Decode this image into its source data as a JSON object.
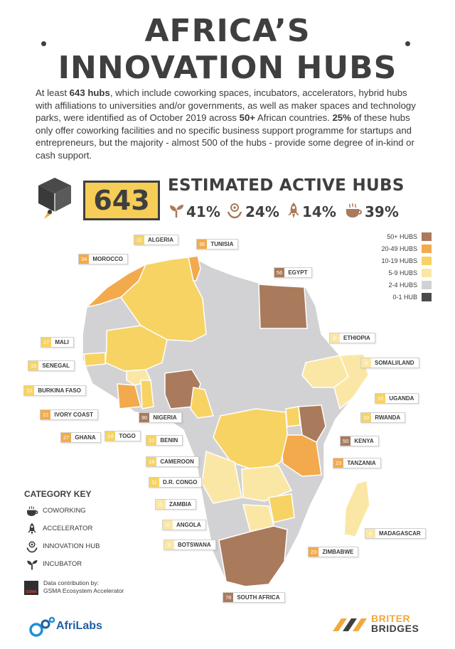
{
  "title": {
    "line1": "AFRICA’S",
    "line2": "INNOVATION HUBS"
  },
  "intro": {
    "p1": "At least ",
    "p2": "643 hubs",
    "p3": ", which include coworking spaces, incubators, accelerators, hybrid hubs with affiliations to universities and/or governments, as well as maker spaces and technology parks, were identified as of October 2019 across ",
    "p4": "50+",
    "p5": " African countries. ",
    "p6": "25%",
    "p7": " of these hubs only offer coworking facilities and no specific business support programme for startups and entrepreneurs, but the majority - almost 500 of the hubs - provide some degree of in-kind or cash support."
  },
  "stats": {
    "count": "643",
    "heading": "ESTIMATED ACTIVE HUBS",
    "incubator_pct": "41%",
    "innovation_hub_pct": "24%",
    "accelerator_pct": "14%",
    "coworking_pct": "39%"
  },
  "colors": {
    "50+": "#a97a5c",
    "20-49": "#f2aa4c",
    "10-19": "#f7d363",
    "5-9": "#fbe7a5",
    "2-4": "#d2d2d4",
    "0-1": "#4a4a4a"
  },
  "legend": [
    {
      "label": "50+ HUBS",
      "color": "#a97a5c"
    },
    {
      "label": "20-49 HUBS",
      "color": "#f2aa4c"
    },
    {
      "label": "10-19 HUBS",
      "color": "#f7d363"
    },
    {
      "label": "5-9 HUBS",
      "color": "#fbe7a5"
    },
    {
      "label": "2-4 HUBS",
      "color": "#d2d2d4"
    },
    {
      "label": "0-1 HUB",
      "color": "#4a4a4a"
    }
  ],
  "countries": [
    {
      "count": "11",
      "name": "ALGERIA",
      "color": "#f7d363"
    },
    {
      "count": "36",
      "name": "TUNISIA",
      "color": "#f2aa4c"
    },
    {
      "count": "34",
      "name": "MOROCCO",
      "color": "#f2aa4c"
    },
    {
      "count": "56",
      "name": "EGYPT",
      "color": "#a97a5c"
    },
    {
      "count": "8",
      "name": "ETHIOPIA",
      "color": "#fbe7a5"
    },
    {
      "count": "6",
      "name": "SOMALI/LAND",
      "color": "#fbe7a5"
    },
    {
      "count": "17",
      "name": "MALI",
      "color": "#f7d363"
    },
    {
      "count": "15",
      "name": "SENEGAL",
      "color": "#f7d363"
    },
    {
      "count": "10",
      "name": "BURKINA FASO",
      "color": "#f7d363"
    },
    {
      "count": "22",
      "name": "IVORY COAST",
      "color": "#f2aa4c"
    },
    {
      "count": "90",
      "name": "NIGERIA",
      "color": "#a97a5c"
    },
    {
      "count": "27",
      "name": "GHANA",
      "color": "#f2aa4c"
    },
    {
      "count": "14",
      "name": "TOGO",
      "color": "#f7d363"
    },
    {
      "count": "10",
      "name": "UGANDA",
      "color": "#f7d363"
    },
    {
      "count": "10",
      "name": "RWANDA",
      "color": "#f7d363"
    },
    {
      "count": "50",
      "name": "KENYA",
      "color": "#a97a5c"
    },
    {
      "count": "23",
      "name": "TANZANIA",
      "color": "#f2aa4c"
    },
    {
      "count": "10",
      "name": "BENIN",
      "color": "#f7d363"
    },
    {
      "count": "18",
      "name": "CAMEROON",
      "color": "#f7d363"
    },
    {
      "count": "11",
      "name": "D.R. CONGO",
      "color": "#f7d363"
    },
    {
      "count": "6",
      "name": "ZAMBIA",
      "color": "#fbe7a5"
    },
    {
      "count": "8",
      "name": "ANGOLA",
      "color": "#fbe7a5"
    },
    {
      "count": "8",
      "name": "BOTSWANA",
      "color": "#fbe7a5"
    },
    {
      "count": "6",
      "name": "MADAGASCAR",
      "color": "#fbe7a5"
    },
    {
      "count": "23",
      "name": "ZIMBABWE",
      "color": "#f2aa4c"
    },
    {
      "count": "78",
      "name": "SOUTH AFRICA",
      "color": "#a97a5c"
    }
  ],
  "category_key": {
    "title": "CATEGORY KEY",
    "items": [
      {
        "label": "COWORKING",
        "icon": "coworking-icon"
      },
      {
        "label": "ACCELERATOR",
        "icon": "rocket-icon"
      },
      {
        "label": "INNOVATION HUB",
        "icon": "innovation-hub-icon"
      },
      {
        "label": "INCUBATOR",
        "icon": "seedling-icon"
      }
    ]
  },
  "credits": {
    "gsma_logo": "GSMA",
    "line1": "Data contribution by:",
    "line2": "GSMA Ecosystem Accelerator",
    "afrilabs": "AfriLabs",
    "briter_line1": "BRITER",
    "briter_line2": "BRIDGES"
  }
}
